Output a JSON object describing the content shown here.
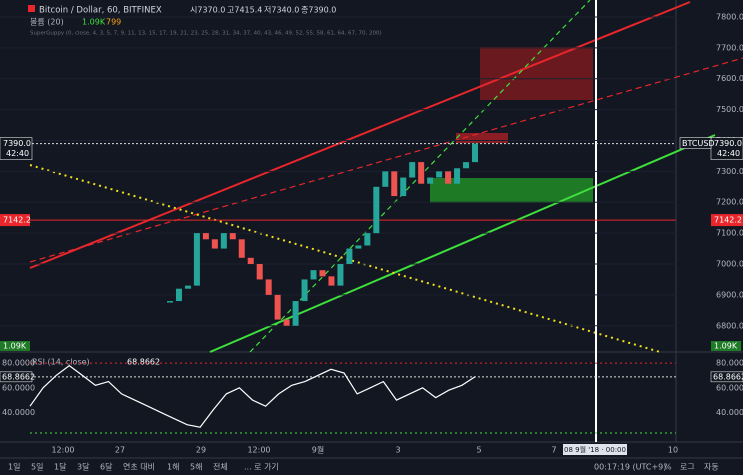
{
  "header": {
    "title": "Bitcoin / Dollar, 60, BITFINEX",
    "ohlc": [
      "시7370.0",
      "고7415.4",
      "저7340.0",
      "종7390.0"
    ],
    "volume_label": "볼륨 (20)",
    "volume_value": "1.09K",
    "volume_ma": "799",
    "indicator": "SuperGuppy (0, close, 4, 3, 5, 7, 9, 11, 13, 15, 17, 19, 21, 23, 25, 28, 31, 34, 37, 40, 43, 46, 49, 52, 55, 58, 61, 64, 67, 70, 200)"
  },
  "price_pane": {
    "ylim": [
      6715,
      7855
    ],
    "yticks": [
      {
        "value": 7800,
        "label": "7800.0"
      },
      {
        "value": 7700,
        "label": "7700.0"
      },
      {
        "value": 7600,
        "label": "7600.0"
      },
      {
        "value": 7500,
        "label": "7500.0"
      },
      {
        "value": 7400,
        "label": "7400.0"
      },
      {
        "value": 7300,
        "label": "7300.0"
      },
      {
        "value": 7200,
        "label": "7200.0"
      },
      {
        "value": 7100,
        "label": "7100.0"
      },
      {
        "value": 7000,
        "label": "7000.0"
      },
      {
        "value": 6900,
        "label": "6900.0"
      },
      {
        "value": 6800,
        "label": "6800.0"
      }
    ],
    "last_price": {
      "value": 7390,
      "label": "7390.0"
    },
    "countdown": "42:40",
    "symbol_tag": "BTCUSD",
    "level": {
      "value": 7142.2,
      "label": "7142.2"
    },
    "volume_tag": "1.09K",
    "closes": [
      6880,
      6920,
      6930,
      7100,
      7080,
      7050,
      7100,
      7080,
      7020,
      7000,
      6950,
      6900,
      6820,
      6800,
      6880,
      6950,
      6980,
      6960,
      6930,
      7000,
      7050,
      7060,
      7100,
      7250,
      7300,
      7220,
      7280,
      7330,
      7260,
      7280,
      7300,
      7260,
      7310,
      7330,
      7390
    ]
  },
  "rsi_pane": {
    "label": "RSI (14, close)",
    "ylim": [
      16,
      89
    ],
    "yticks": [
      {
        "value": 80,
        "label": "80.0000"
      },
      {
        "value": 60,
        "label": "60.0000"
      },
      {
        "value": 40,
        "label": "40.0000"
      }
    ],
    "last": {
      "value": 68.8662,
      "label": "68.8662"
    },
    "values": [
      45,
      60,
      70,
      78,
      70,
      62,
      65,
      55,
      50,
      45,
      40,
      35,
      30,
      28,
      42,
      55,
      60,
      50,
      45,
      55,
      62,
      65,
      70,
      75,
      72,
      55,
      60,
      65,
      50,
      55,
      60,
      52,
      58,
      62,
      68.8662
    ]
  },
  "time_axis": {
    "labels": [
      "12:00",
      "27",
      "29",
      "12:00",
      "9월",
      "3",
      "5",
      "7",
      "10"
    ],
    "cursor": "08 9월 '18 · 00:00"
  },
  "toolbar": {
    "ranges": [
      "1일",
      "5일",
      "1달",
      "3달",
      "6달",
      "연초 대비",
      "1해",
      "5해",
      "전체"
    ],
    "goto": "... 로 가기",
    "clock": "00:17:19 (UTC+9)",
    "options": [
      "%",
      "로그",
      "자동"
    ]
  }
}
